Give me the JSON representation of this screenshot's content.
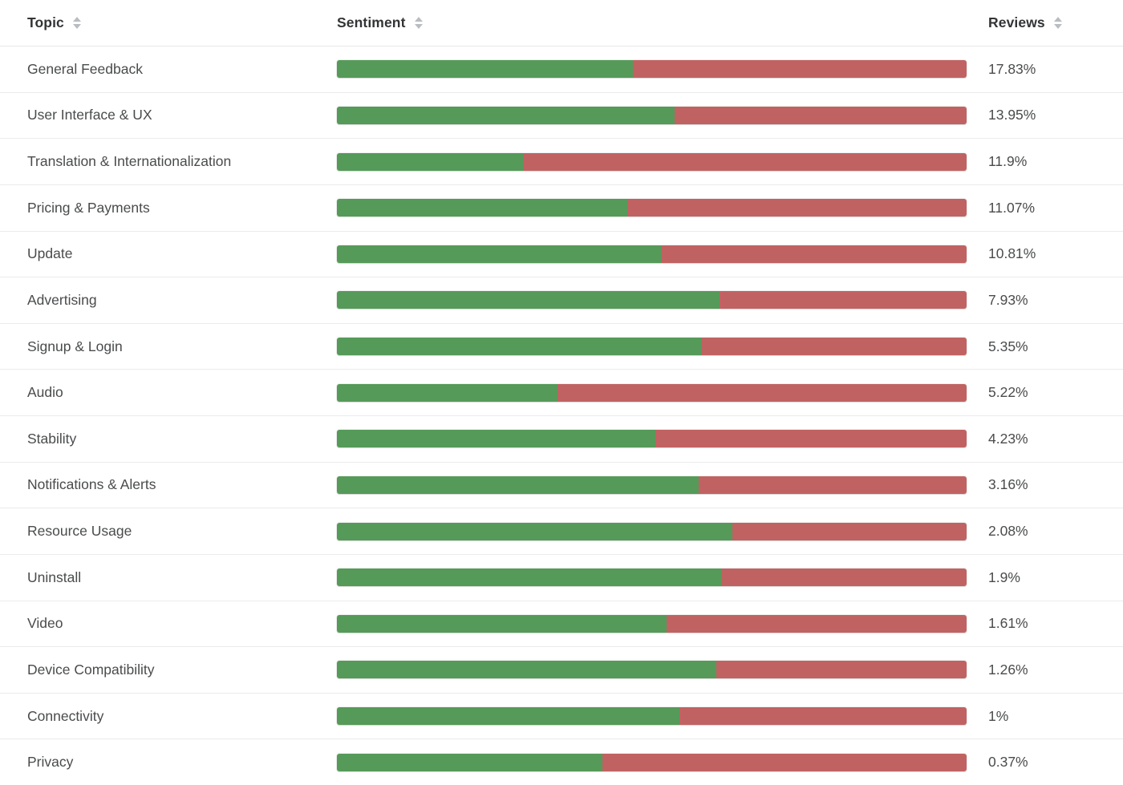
{
  "colors": {
    "positive": "#559a58",
    "negative": "#c16262",
    "sort_icon": "#b9bdc1"
  },
  "table": {
    "columns": [
      {
        "key": "topic",
        "label": "Topic",
        "sortable": true,
        "sort_icon": "sort-arrows"
      },
      {
        "key": "sentiment",
        "label": "Sentiment",
        "sortable": true,
        "sort_icon": "sort-arrows"
      },
      {
        "key": "reviews",
        "label": "Reviews",
        "sortable": true,
        "sort_icon": "sort-arrows"
      }
    ],
    "rows": [
      {
        "topic": "General Feedback",
        "positive_pct": 47.0,
        "negative_pct": 53.0,
        "reviews": "17.83%"
      },
      {
        "topic": "User Interface & UX",
        "positive_pct": 53.6,
        "negative_pct": 46.4,
        "reviews": "13.95%"
      },
      {
        "topic": "Translation & Internationalization",
        "positive_pct": 29.7,
        "negative_pct": 70.3,
        "reviews": "11.9%"
      },
      {
        "topic": "Pricing & Payments",
        "positive_pct": 46.1,
        "negative_pct": 53.9,
        "reviews": "11.07%"
      },
      {
        "topic": "Update",
        "positive_pct": 51.6,
        "negative_pct": 48.4,
        "reviews": "10.81%"
      },
      {
        "topic": "Advertising",
        "positive_pct": 60.8,
        "negative_pct": 39.2,
        "reviews": "7.93%"
      },
      {
        "topic": "Signup & Login",
        "positive_pct": 58.0,
        "negative_pct": 42.0,
        "reviews": "5.35%"
      },
      {
        "topic": "Audio",
        "positive_pct": 35.0,
        "negative_pct": 65.0,
        "reviews": "5.22%"
      },
      {
        "topic": "Stability",
        "positive_pct": 50.6,
        "negative_pct": 49.4,
        "reviews": "4.23%"
      },
      {
        "topic": "Notifications & Alerts",
        "positive_pct": 57.4,
        "negative_pct": 42.6,
        "reviews": "3.16%"
      },
      {
        "topic": "Resource Usage",
        "positive_pct": 62.8,
        "negative_pct": 37.2,
        "reviews": "2.08%"
      },
      {
        "topic": "Uninstall",
        "positive_pct": 61.1,
        "negative_pct": 38.9,
        "reviews": "1.9%"
      },
      {
        "topic": "Video",
        "positive_pct": 52.3,
        "negative_pct": 47.7,
        "reviews": "1.61%"
      },
      {
        "topic": "Device Compatibility",
        "positive_pct": 60.3,
        "negative_pct": 39.7,
        "reviews": "1.26%"
      },
      {
        "topic": "Connectivity",
        "positive_pct": 54.4,
        "negative_pct": 45.6,
        "reviews": "1%"
      },
      {
        "topic": "Privacy",
        "positive_pct": 42.2,
        "negative_pct": 57.8,
        "reviews": "0.37%"
      }
    ]
  }
}
